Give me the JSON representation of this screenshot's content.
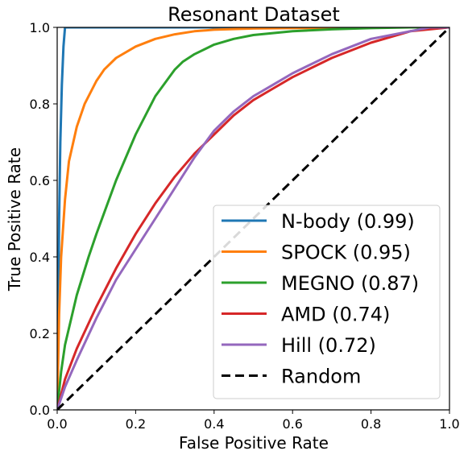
{
  "chart_data": {
    "type": "line",
    "title": "Resonant Dataset",
    "xlabel": "False Positive Rate",
    "ylabel": "True Positive Rate",
    "xlim": [
      0,
      1
    ],
    "ylim": [
      0,
      1
    ],
    "xticks": [
      "0.0",
      "0.2",
      "0.4",
      "0.6",
      "0.8",
      "1.0"
    ],
    "yticks": [
      "0.0",
      "0.2",
      "0.4",
      "0.6",
      "0.8",
      "1.0"
    ],
    "grid": false,
    "legend_position": "lower right",
    "series": [
      {
        "name": "N-body (0.99)",
        "color": "#1f77b4",
        "dash": "solid",
        "x": [
          0,
          0.002,
          0.005,
          0.008,
          0.012,
          0.016,
          0.02,
          1.0
        ],
        "y": [
          0,
          0.2,
          0.5,
          0.7,
          0.85,
          0.95,
          1.0,
          1.0
        ]
      },
      {
        "name": "SPOCK (0.95)",
        "color": "#ff7f0e",
        "dash": "solid",
        "x": [
          0,
          0.005,
          0.01,
          0.02,
          0.03,
          0.05,
          0.07,
          0.1,
          0.12,
          0.15,
          0.2,
          0.25,
          0.3,
          0.35,
          0.4,
          0.5,
          0.6,
          0.7,
          0.8,
          1.0
        ],
        "y": [
          0,
          0.25,
          0.4,
          0.55,
          0.65,
          0.74,
          0.8,
          0.86,
          0.89,
          0.92,
          0.95,
          0.97,
          0.982,
          0.99,
          0.994,
          0.997,
          0.998,
          0.999,
          1.0,
          1.0
        ]
      },
      {
        "name": "MEGNO (0.87)",
        "color": "#2ca02c",
        "dash": "solid",
        "x": [
          0,
          0.01,
          0.02,
          0.05,
          0.08,
          0.1,
          0.15,
          0.2,
          0.25,
          0.3,
          0.32,
          0.35,
          0.4,
          0.45,
          0.5,
          0.6,
          0.7,
          0.8,
          0.9,
          1.0
        ],
        "y": [
          0,
          0.1,
          0.17,
          0.3,
          0.4,
          0.46,
          0.6,
          0.72,
          0.82,
          0.89,
          0.91,
          0.93,
          0.955,
          0.97,
          0.98,
          0.99,
          0.995,
          0.998,
          1.0,
          1.0
        ]
      },
      {
        "name": "AMD (0.74)",
        "color": "#d62728",
        "dash": "solid",
        "x": [
          0,
          0.02,
          0.05,
          0.1,
          0.15,
          0.2,
          0.25,
          0.3,
          0.35,
          0.4,
          0.45,
          0.5,
          0.55,
          0.6,
          0.7,
          0.8,
          0.9,
          1.0
        ],
        "y": [
          0,
          0.08,
          0.16,
          0.27,
          0.37,
          0.46,
          0.54,
          0.61,
          0.67,
          0.72,
          0.77,
          0.81,
          0.84,
          0.87,
          0.92,
          0.96,
          0.99,
          1.0
        ]
      },
      {
        "name": "Hill (0.72)",
        "color": "#9467bd",
        "dash": "solid",
        "x": [
          0,
          0.02,
          0.05,
          0.1,
          0.15,
          0.2,
          0.25,
          0.3,
          0.35,
          0.4,
          0.45,
          0.5,
          0.55,
          0.6,
          0.7,
          0.8,
          0.9,
          0.95,
          1.0
        ],
        "y": [
          0,
          0.06,
          0.13,
          0.24,
          0.34,
          0.42,
          0.5,
          0.58,
          0.66,
          0.73,
          0.78,
          0.82,
          0.85,
          0.88,
          0.93,
          0.97,
          0.99,
          1.0,
          1.0
        ]
      },
      {
        "name": "Random",
        "color": "#000000",
        "dash": "dashed",
        "x": [
          0,
          1
        ],
        "y": [
          0,
          1
        ]
      }
    ]
  }
}
